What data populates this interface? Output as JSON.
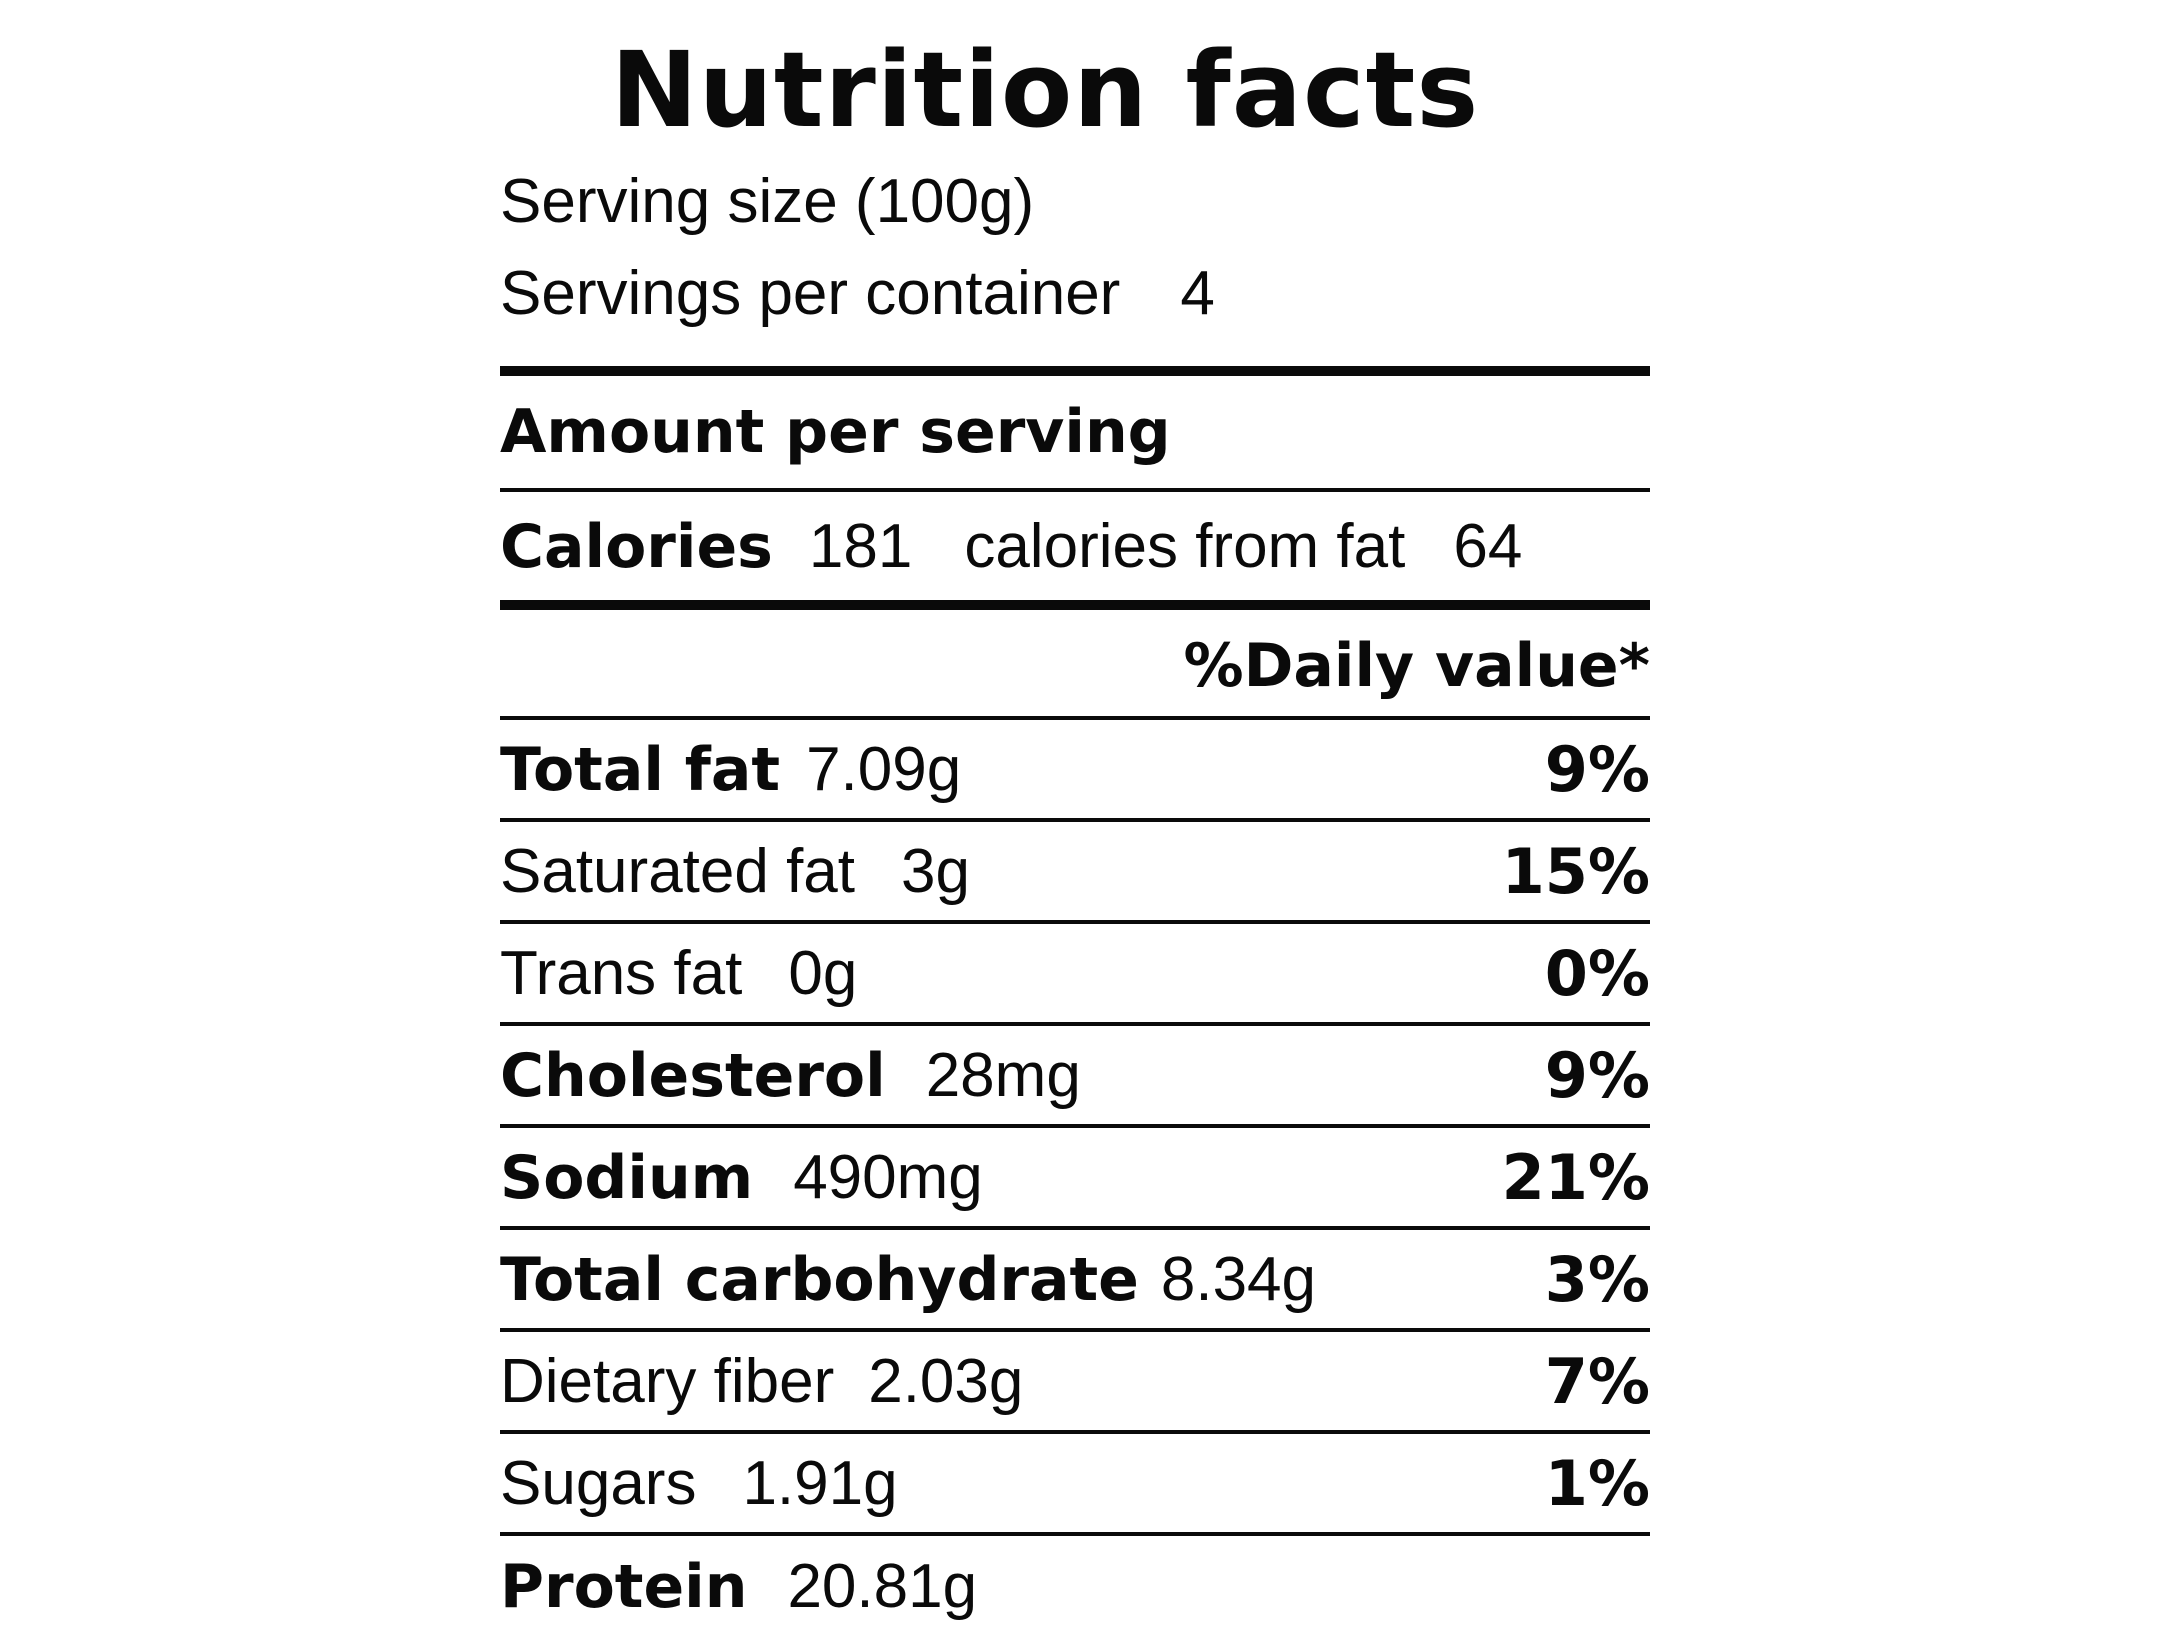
{
  "title": "Nutrition facts",
  "serving_size": "Serving size (100g)",
  "servings_per_container": {
    "label": "Servings per container",
    "value": "4"
  },
  "amount_per_serving": "Amount per serving",
  "calories": {
    "label": "Calories",
    "value": "181",
    "from_fat_label": "calories from fat",
    "from_fat_value": "64"
  },
  "daily_value_header": "%Daily value*",
  "nutrients": [
    {
      "name": "Total fat",
      "amount": "7.09g",
      "dv": "9%"
    },
    {
      "name": "Saturated fat",
      "amount": "3g",
      "dv": "15%"
    },
    {
      "name": "Trans fat",
      "amount": "0g",
      "dv": "0%"
    },
    {
      "name": "Cholesterol",
      "amount": "28mg",
      "dv": "9%"
    },
    {
      "name": "Sodium",
      "amount": "490mg",
      "dv": "21%"
    },
    {
      "name": "Total carbohydrate",
      "amount": "8.34g",
      "dv": "3%"
    },
    {
      "name": "Dietary fiber",
      "amount": "2.03g",
      "dv": "7%"
    },
    {
      "name": "Sugars",
      "amount": "1.91g",
      "dv": "1%"
    },
    {
      "name": "Protein",
      "amount": "20.81g",
      "dv": ""
    }
  ]
}
